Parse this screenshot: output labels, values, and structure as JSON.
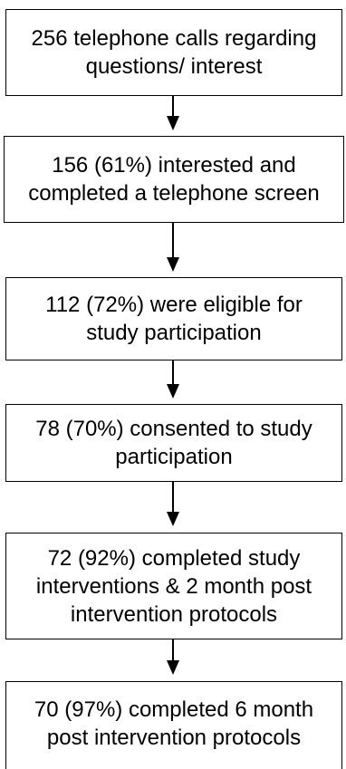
{
  "flowchart": {
    "steps": [
      {
        "text": "256 telephone calls regarding\nquestions/ interest"
      },
      {
        "text": "156 (61%) interested and\ncompleted a telephone screen"
      },
      {
        "text": "112 (72%) were eligible for\nstudy participation"
      },
      {
        "text": "78 (70%) consented to study\nparticipation"
      },
      {
        "text": "72 (92%) completed study\ninterventions & 2 month post\nintervention protocols"
      },
      {
        "text": "70 (97%) completed 6 month\npost intervention protocols"
      }
    ]
  }
}
